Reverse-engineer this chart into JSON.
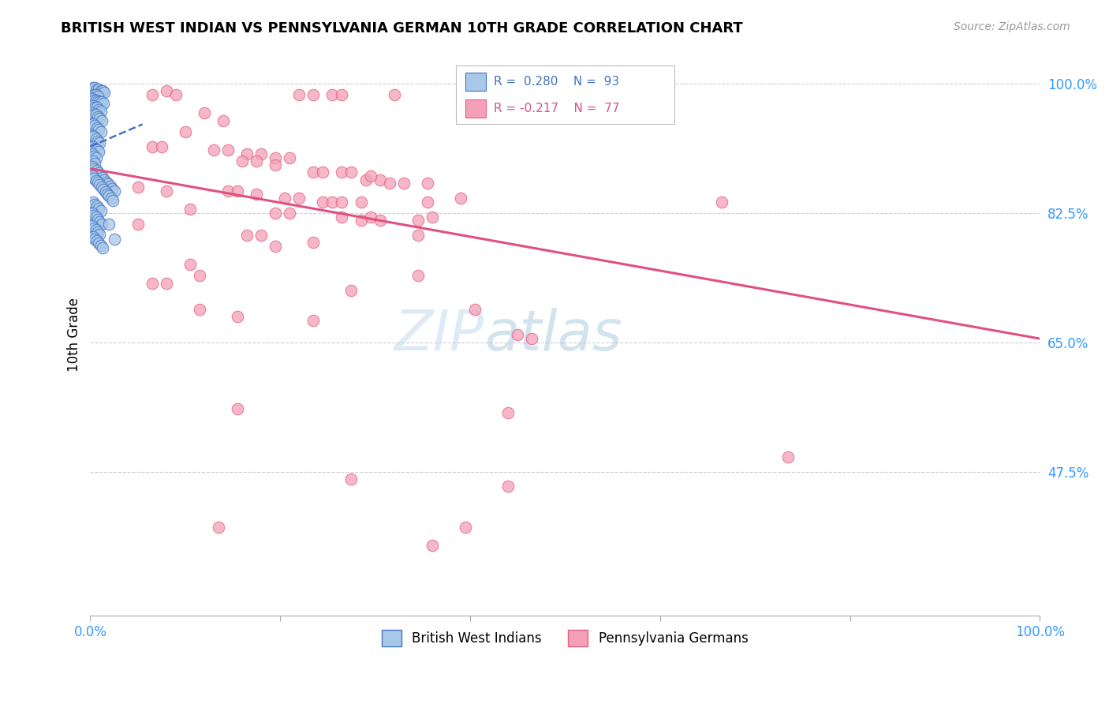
{
  "title": "BRITISH WEST INDIAN VS PENNSYLVANIA GERMAN 10TH GRADE CORRELATION CHART",
  "source": "Source: ZipAtlas.com",
  "ylabel": "10th Grade",
  "xlim": [
    0.0,
    1.0
  ],
  "ylim": [
    0.28,
    1.04
  ],
  "yticks": [
    0.475,
    0.65,
    0.825,
    1.0
  ],
  "ytick_labels": [
    "47.5%",
    "65.0%",
    "82.5%",
    "100.0%"
  ],
  "xticks": [
    0.0,
    0.2,
    0.4,
    0.6,
    0.8,
    1.0
  ],
  "xtick_labels": [
    "0.0%",
    "",
    "",
    "",
    "",
    "100.0%"
  ],
  "blue_color": "#a8c8e8",
  "blue_edge_color": "#4472c4",
  "pink_color": "#f4a0b8",
  "pink_edge_color": "#e06080",
  "blue_line_color": "#4472c4",
  "pink_line_color": "#e05080",
  "watermark_zip_color": "#c8dff0",
  "watermark_atlas_color": "#b0cce0",
  "background_color": "#ffffff",
  "grid_color": "#d0d0d0",
  "tick_label_color": "#3399ff",
  "pink_line_x0": 0.0,
  "pink_line_y0": 0.885,
  "pink_line_x1": 1.0,
  "pink_line_y1": 0.655,
  "blue_line_x0": 0.0,
  "blue_line_y0": 0.915,
  "blue_line_x1": 0.055,
  "blue_line_y1": 0.945,
  "pink_points": [
    [
      0.065,
      0.985
    ],
    [
      0.08,
      0.99
    ],
    [
      0.09,
      0.985
    ],
    [
      0.22,
      0.985
    ],
    [
      0.235,
      0.985
    ],
    [
      0.255,
      0.985
    ],
    [
      0.265,
      0.985
    ],
    [
      0.32,
      0.985
    ],
    [
      0.41,
      0.985
    ],
    [
      0.12,
      0.96
    ],
    [
      0.14,
      0.95
    ],
    [
      0.1,
      0.935
    ],
    [
      0.065,
      0.915
    ],
    [
      0.075,
      0.915
    ],
    [
      0.13,
      0.91
    ],
    [
      0.145,
      0.91
    ],
    [
      0.165,
      0.905
    ],
    [
      0.18,
      0.905
    ],
    [
      0.195,
      0.9
    ],
    [
      0.21,
      0.9
    ],
    [
      0.16,
      0.895
    ],
    [
      0.175,
      0.895
    ],
    [
      0.195,
      0.89
    ],
    [
      0.235,
      0.88
    ],
    [
      0.245,
      0.88
    ],
    [
      0.265,
      0.88
    ],
    [
      0.275,
      0.88
    ],
    [
      0.29,
      0.87
    ],
    [
      0.305,
      0.87
    ],
    [
      0.295,
      0.875
    ],
    [
      0.315,
      0.865
    ],
    [
      0.33,
      0.865
    ],
    [
      0.355,
      0.865
    ],
    [
      0.05,
      0.86
    ],
    [
      0.08,
      0.855
    ],
    [
      0.145,
      0.855
    ],
    [
      0.155,
      0.855
    ],
    [
      0.175,
      0.85
    ],
    [
      0.205,
      0.845
    ],
    [
      0.22,
      0.845
    ],
    [
      0.245,
      0.84
    ],
    [
      0.255,
      0.84
    ],
    [
      0.265,
      0.84
    ],
    [
      0.285,
      0.84
    ],
    [
      0.355,
      0.84
    ],
    [
      0.105,
      0.83
    ],
    [
      0.195,
      0.825
    ],
    [
      0.21,
      0.825
    ],
    [
      0.265,
      0.82
    ],
    [
      0.285,
      0.815
    ],
    [
      0.295,
      0.82
    ],
    [
      0.305,
      0.815
    ],
    [
      0.345,
      0.815
    ],
    [
      0.36,
      0.82
    ],
    [
      0.39,
      0.845
    ],
    [
      0.05,
      0.81
    ],
    [
      0.165,
      0.795
    ],
    [
      0.18,
      0.795
    ],
    [
      0.235,
      0.785
    ],
    [
      0.345,
      0.795
    ],
    [
      0.195,
      0.78
    ],
    [
      0.105,
      0.755
    ],
    [
      0.115,
      0.74
    ],
    [
      0.065,
      0.73
    ],
    [
      0.08,
      0.73
    ],
    [
      0.665,
      0.84
    ],
    [
      0.345,
      0.74
    ],
    [
      0.275,
      0.72
    ],
    [
      0.115,
      0.695
    ],
    [
      0.155,
      0.685
    ],
    [
      0.235,
      0.68
    ],
    [
      0.405,
      0.695
    ],
    [
      0.45,
      0.66
    ],
    [
      0.465,
      0.655
    ],
    [
      0.155,
      0.56
    ],
    [
      0.44,
      0.555
    ],
    [
      0.735,
      0.495
    ],
    [
      0.275,
      0.465
    ],
    [
      0.44,
      0.455
    ],
    [
      0.135,
      0.4
    ],
    [
      0.395,
      0.4
    ],
    [
      0.36,
      0.375
    ]
  ],
  "blue_points": [
    [
      0.003,
      0.995
    ],
    [
      0.005,
      0.995
    ],
    [
      0.007,
      0.993
    ],
    [
      0.009,
      0.993
    ],
    [
      0.011,
      0.99
    ],
    [
      0.013,
      0.99
    ],
    [
      0.015,
      0.988
    ],
    [
      0.004,
      0.985
    ],
    [
      0.006,
      0.985
    ],
    [
      0.008,
      0.983
    ],
    [
      0.002,
      0.98
    ],
    [
      0.004,
      0.978
    ],
    [
      0.006,
      0.978
    ],
    [
      0.008,
      0.976
    ],
    [
      0.01,
      0.975
    ],
    [
      0.012,
      0.975
    ],
    [
      0.014,
      0.973
    ],
    [
      0.003,
      0.97
    ],
    [
      0.005,
      0.968
    ],
    [
      0.007,
      0.968
    ],
    [
      0.009,
      0.965
    ],
    [
      0.011,
      0.963
    ],
    [
      0.002,
      0.96
    ],
    [
      0.004,
      0.958
    ],
    [
      0.006,
      0.958
    ],
    [
      0.008,
      0.955
    ],
    [
      0.01,
      0.953
    ],
    [
      0.012,
      0.95
    ],
    [
      0.003,
      0.945
    ],
    [
      0.005,
      0.943
    ],
    [
      0.007,
      0.94
    ],
    [
      0.009,
      0.938
    ],
    [
      0.011,
      0.935
    ],
    [
      0.002,
      0.93
    ],
    [
      0.004,
      0.928
    ],
    [
      0.006,
      0.925
    ],
    [
      0.008,
      0.922
    ],
    [
      0.01,
      0.92
    ],
    [
      0.003,
      0.915
    ],
    [
      0.005,
      0.912
    ],
    [
      0.007,
      0.91
    ],
    [
      0.009,
      0.908
    ],
    [
      0.002,
      0.905
    ],
    [
      0.004,
      0.902
    ],
    [
      0.006,
      0.9
    ],
    [
      0.003,
      0.895
    ],
    [
      0.005,
      0.892
    ],
    [
      0.002,
      0.888
    ],
    [
      0.004,
      0.885
    ],
    [
      0.007,
      0.882
    ],
    [
      0.009,
      0.879
    ],
    [
      0.011,
      0.876
    ],
    [
      0.013,
      0.873
    ],
    [
      0.015,
      0.87
    ],
    [
      0.017,
      0.867
    ],
    [
      0.019,
      0.864
    ],
    [
      0.021,
      0.861
    ],
    [
      0.023,
      0.858
    ],
    [
      0.025,
      0.855
    ],
    [
      0.002,
      0.875
    ],
    [
      0.004,
      0.872
    ],
    [
      0.006,
      0.869
    ],
    [
      0.008,
      0.866
    ],
    [
      0.01,
      0.863
    ],
    [
      0.012,
      0.86
    ],
    [
      0.014,
      0.857
    ],
    [
      0.016,
      0.854
    ],
    [
      0.018,
      0.851
    ],
    [
      0.02,
      0.848
    ],
    [
      0.022,
      0.845
    ],
    [
      0.024,
      0.842
    ],
    [
      0.003,
      0.84
    ],
    [
      0.005,
      0.837
    ],
    [
      0.007,
      0.834
    ],
    [
      0.009,
      0.831
    ],
    [
      0.011,
      0.828
    ],
    [
      0.002,
      0.825
    ],
    [
      0.004,
      0.822
    ],
    [
      0.006,
      0.819
    ],
    [
      0.008,
      0.816
    ],
    [
      0.01,
      0.813
    ],
    [
      0.012,
      0.81
    ],
    [
      0.002,
      0.808
    ],
    [
      0.004,
      0.805
    ],
    [
      0.006,
      0.802
    ],
    [
      0.008,
      0.799
    ],
    [
      0.01,
      0.796
    ],
    [
      0.003,
      0.793
    ],
    [
      0.005,
      0.79
    ],
    [
      0.007,
      0.787
    ],
    [
      0.009,
      0.784
    ],
    [
      0.011,
      0.781
    ],
    [
      0.013,
      0.778
    ],
    [
      0.02,
      0.81
    ],
    [
      0.025,
      0.79
    ]
  ]
}
